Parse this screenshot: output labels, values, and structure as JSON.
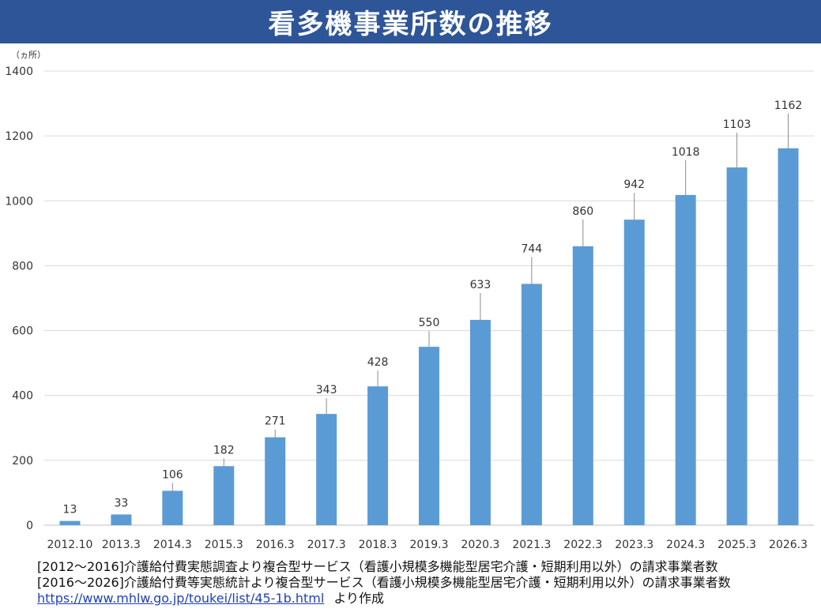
{
  "title": "看多機事業所数の推移",
  "colors": {
    "title_bg": "#2e5597",
    "bar": "#5b9bd5",
    "grid": "#d9d9d9",
    "leader": "#8c8c8c"
  },
  "chart_data": {
    "type": "bar",
    "unit_label": "（ヵ所）",
    "categories": [
      "2012.10",
      "2013.3",
      "2014.3",
      "2015.3",
      "2016.3",
      "2017.3",
      "2018.3",
      "2019.3",
      "2020.3",
      "2021.3",
      "2022.3",
      "2023.3",
      "2024.3",
      "2025.3",
      "2026.3"
    ],
    "values": [
      13,
      33,
      106,
      182,
      271,
      343,
      428,
      550,
      633,
      744,
      860,
      942,
      1018,
      1103,
      1162
    ],
    "ylim": [
      0,
      1400
    ],
    "yticks": [
      0,
      200,
      400,
      600,
      800,
      1000,
      1200,
      1400
    ],
    "grid": true,
    "data_labels": true
  },
  "notes": {
    "line1": "[2012～2016]介護給付費実態調査より複合型サービス（看護小規模多機能型居宅介護・短期利用以外）の請求事業者数",
    "line2": "[2016～2026]介護給付費等実態統計より複合型サービス（看護小規模多機能型居宅介護・短期利用以外）の請求事業者数",
    "link": "https://www.mhlw.go.jp/toukei/list/45-1b.html",
    "suffix": "より作成"
  }
}
